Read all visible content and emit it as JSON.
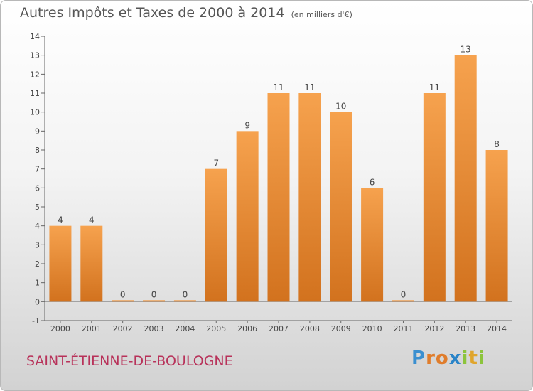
{
  "title": "Autres Impôts et Taxes de 2000 à 2014",
  "title_unit": "(en milliers d'€)",
  "commune": "SAINT-ÉTIENNE-DE-BOULOGNE",
  "logo": {
    "letters": [
      "P",
      "r",
      "o",
      "x",
      "i",
      "t",
      "i"
    ],
    "colors": [
      "#3a8fd0",
      "#e07d2c",
      "#e07d2c",
      "#2a84c8",
      "#8cc43c",
      "#e0a52c",
      "#8cc43c"
    ]
  },
  "colors": {
    "bar_light": "#f6a24e",
    "bar_dark": "#d2721e",
    "axis": "#666666",
    "text": "#444444"
  },
  "chart_data": {
    "type": "bar",
    "categories": [
      "2000",
      "2001",
      "2002",
      "2003",
      "2004",
      "2005",
      "2006",
      "2007",
      "2008",
      "2009",
      "2010",
      "2011",
      "2012",
      "2013",
      "2014"
    ],
    "values": [
      4,
      4,
      0,
      0,
      0,
      7,
      9,
      11,
      11,
      10,
      6,
      0,
      11,
      13,
      8
    ],
    "data_labels": [
      "4",
      "4",
      "0",
      "0",
      "0",
      "7",
      "9",
      "11",
      "11",
      "10",
      "6",
      "0",
      "11",
      "13",
      "8"
    ],
    "y_ticks": [
      -1,
      0,
      1,
      2,
      3,
      4,
      5,
      6,
      7,
      8,
      9,
      10,
      11,
      12,
      13,
      14
    ],
    "ylim": [
      -1,
      14
    ],
    "grid": false,
    "legend": "none"
  }
}
